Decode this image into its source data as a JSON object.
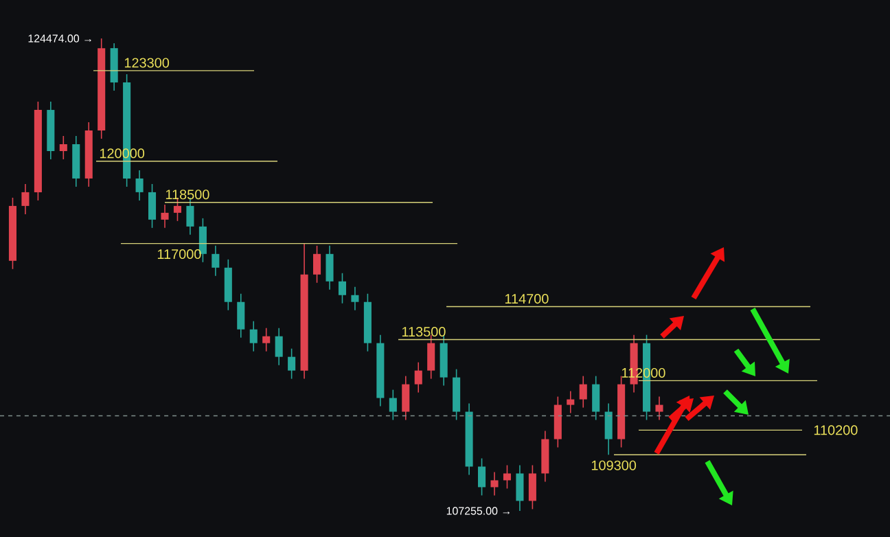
{
  "chart_data": {
    "type": "candlestick",
    "colors": [
      "#e0434f",
      "#e0434f",
      "#e0434f",
      "#26a69a",
      "#e0434f",
      "#26a69a",
      "#e0434f",
      "#e0434f",
      "#26a69a",
      "#26a69a",
      "#26a69a",
      "#26a69a",
      "#e0434f",
      "#e0434f",
      "#26a69a",
      "#26a69a",
      "#26a69a",
      "#26a69a",
      "#26a69a",
      "#26a69a",
      "#e0434f",
      "#26a69a",
      "#26a69a",
      "#e0434f",
      "#e0434f",
      "#26a69a",
      "#26a69a",
      "#26a69a",
      "#26a69a",
      "#26a69a",
      "#26a69a",
      "#e0434f",
      "#e0434f",
      "#e0434f",
      "#26a69a",
      "#26a69a",
      "#26a69a",
      "#26a69a",
      "#e0434f",
      "#e0434f",
      "#26a69a",
      "#e0434f",
      "#e0434f",
      "#e0434f",
      "#e0434f",
      "#e0434f",
      "#26a69a",
      "#26a69a",
      "#e0434f",
      "#e0434f",
      "#26a69a",
      "#e0434f"
    ],
    "categories": [
      null,
      null,
      null,
      null,
      null,
      null,
      null,
      null,
      null,
      null,
      null,
      null,
      null,
      null,
      null,
      null,
      null,
      null,
      null,
      null,
      null,
      null,
      null,
      null,
      null,
      null,
      null,
      null,
      null,
      null,
      null,
      null,
      null,
      null,
      null,
      null,
      null,
      null,
      null,
      null,
      null,
      null,
      null,
      null,
      null,
      null,
      null,
      null,
      null,
      null,
      null,
      null
    ],
    "ohlc": [
      [
        116370,
        118670,
        116070,
        118370
      ],
      [
        118370,
        119170,
        118070,
        118870
      ],
      [
        118870,
        122170,
        118570,
        121870
      ],
      [
        121870,
        122170,
        120070,
        120370
      ],
      [
        120370,
        120920,
        120070,
        120620
      ],
      [
        120620,
        120920,
        119070,
        119370
      ],
      [
        119370,
        121420,
        119070,
        121120
      ],
      [
        121120,
        124474,
        120820,
        124120
      ],
      [
        124120,
        124300,
        122570,
        122870
      ],
      [
        122870,
        123170,
        119070,
        119370
      ],
      [
        119370,
        119670,
        118570,
        118870
      ],
      [
        118870,
        119170,
        117570,
        117870
      ],
      [
        117870,
        118420,
        117570,
        118120
      ],
      [
        118120,
        118670,
        117820,
        118370
      ],
      [
        118370,
        118670,
        117320,
        117620
      ],
      [
        117620,
        117920,
        116320,
        116620
      ],
      [
        116620,
        116920,
        115820,
        116120
      ],
      [
        116120,
        116420,
        114570,
        114870
      ],
      [
        114870,
        115170,
        113570,
        113870
      ],
      [
        113870,
        114170,
        113070,
        113370
      ],
      [
        113370,
        113920,
        113070,
        113620
      ],
      [
        113620,
        113920,
        112570,
        112870
      ],
      [
        112870,
        113170,
        112070,
        112370
      ],
      [
        112370,
        117000,
        112070,
        115870
      ],
      [
        115870,
        116920,
        115570,
        116620
      ],
      [
        116620,
        116920,
        115320,
        115620
      ],
      [
        115620,
        115920,
        114820,
        115120
      ],
      [
        115120,
        115420,
        114570,
        114870
      ],
      [
        114870,
        115170,
        113070,
        113370
      ],
      [
        113370,
        113670,
        111070,
        111370
      ],
      [
        111370,
        111670,
        110570,
        110870
      ],
      [
        110870,
        112170,
        110570,
        111870
      ],
      [
        111870,
        112670,
        111570,
        112370
      ],
      [
        112370,
        113670,
        112070,
        113370
      ],
      [
        113370,
        113670,
        111820,
        112120
      ],
      [
        112120,
        112420,
        110570,
        110870
      ],
      [
        110870,
        111170,
        108570,
        108870
      ],
      [
        108870,
        109170,
        107820,
        108120
      ],
      [
        108120,
        108670,
        107820,
        108370
      ],
      [
        108370,
        108920,
        108070,
        108620
      ],
      [
        108620,
        108920,
        107255,
        107620
      ],
      [
        107620,
        108920,
        107320,
        108620
      ],
      [
        108620,
        110170,
        108320,
        109870
      ],
      [
        109870,
        111420,
        109570,
        111120
      ],
      [
        111120,
        111620,
        110820,
        111320
      ],
      [
        111320,
        112170,
        111020,
        111870
      ],
      [
        111870,
        112170,
        110570,
        110870
      ],
      [
        110870,
        111170,
        109300,
        109870
      ],
      [
        109870,
        112170,
        109570,
        111870
      ],
      [
        111870,
        113670,
        111570,
        113370
      ],
      [
        113370,
        113670,
        110570,
        110870
      ],
      [
        110870,
        111420,
        110570,
        111120
      ]
    ],
    "ref_lines": [
      {
        "axis": "y",
        "value": 123300,
        "label": "123300",
        "color": "#d8d27a"
      },
      {
        "axis": "y",
        "value": 120000,
        "label": "120000",
        "color": "#d8d27a"
      },
      {
        "axis": "y",
        "value": 118500,
        "label": "118500",
        "color": "#d8d27a"
      },
      {
        "axis": "y",
        "value": 117000,
        "label": "117000",
        "color": "#d8d27a"
      },
      {
        "axis": "y",
        "value": 114700,
        "label": "114700",
        "color": "#d8d27a"
      },
      {
        "axis": "y",
        "value": 113500,
        "label": "113500",
        "color": "#d8d27a"
      },
      {
        "axis": "y",
        "value": 112000,
        "label": "112000",
        "color": "#d8d27a"
      },
      {
        "axis": "y",
        "value": 110200,
        "label": "110200",
        "color": "#d8d27a"
      },
      {
        "axis": "y",
        "value": 109300,
        "label": "109300",
        "color": "#d8d27a"
      },
      {
        "axis": "y",
        "value": 110720,
        "color": "#7f8f8c",
        "line_style": "dashed"
      }
    ],
    "annotations": [
      "124474.00 →",
      "107255.00 →"
    ]
  }
}
